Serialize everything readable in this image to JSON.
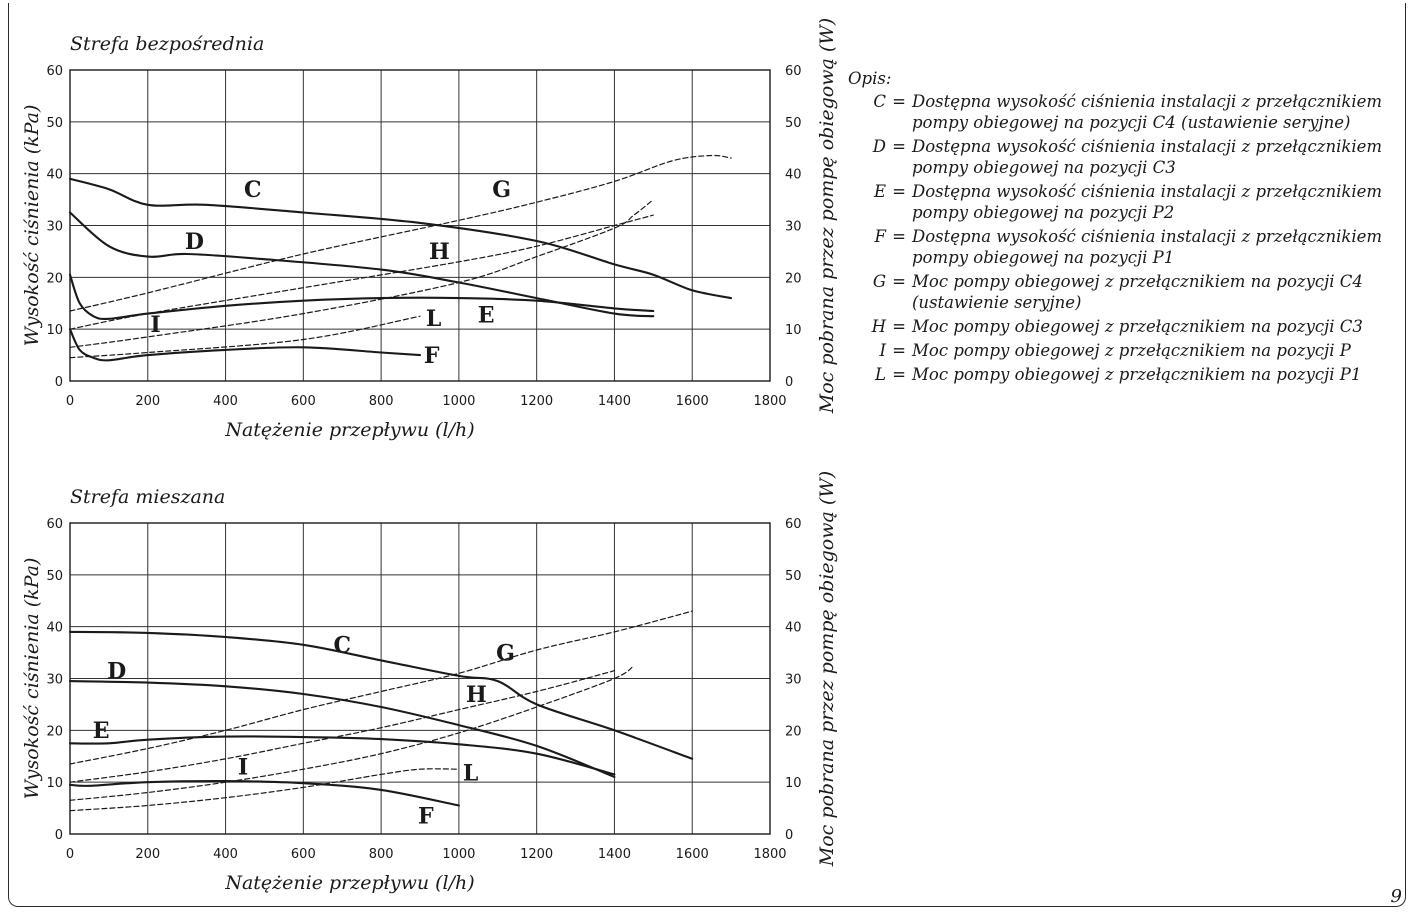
{
  "page_number": "9",
  "legend": {
    "heading": "Opis:",
    "items": [
      {
        "key": "C",
        "text": "Dostępna wysokość ciśnienia instalacji z przełącznikiem pompy obiegowej na pozycji C4 (ustawienie seryjne)"
      },
      {
        "key": "D",
        "text": "Dostępna wysokość ciśnienia instalacji z przełącznikiem pompy obiegowej na pozycji C3"
      },
      {
        "key": "E",
        "text": "Dostępna wysokość ciśnienia instalacji z przełącznikiem pompy obiegowej na pozycji P2"
      },
      {
        "key": "F",
        "text": "Dostępna wysokość ciśnienia instalacji z przełącznikiem pompy obiegowej na pozycji P1"
      },
      {
        "key": "G",
        "text": "Moc pompy obiegowej z przełącznikiem na pozycji C4 (ustawienie seryjne)"
      },
      {
        "key": "H",
        "text": "Moc pompy obiegowej z przełącznikiem na pozycji C3"
      },
      {
        "key": "I",
        "text": "Moc pompy obiegowej z przełącznikiem na pozycji P"
      },
      {
        "key": "L",
        "text": "Moc pompy obiegowej z przełącznikiem na pozycji P1"
      }
    ]
  },
  "chart_data": [
    {
      "type": "line",
      "title": "Strefa bezpośrednia",
      "xlabel": "Natężenie przepływu (l/h)",
      "ylabel": "Wysokość ciśnienia (kPa)",
      "y2label": "Moc pobrana przez pompę obiegową (W)",
      "xlim": [
        0,
        1800
      ],
      "ylim": [
        0,
        60
      ],
      "y2lim": [
        0,
        60
      ],
      "xticks": [
        0,
        200,
        400,
        600,
        800,
        1000,
        1200,
        1400,
        1600,
        1800
      ],
      "yticks": [
        0,
        10,
        20,
        30,
        40,
        50,
        60
      ],
      "grid": true,
      "series": [
        {
          "name": "C",
          "style": "solid",
          "label_at": [
            470,
            35.5
          ],
          "points": [
            [
              0,
              39
            ],
            [
              100,
              37
            ],
            [
              200,
              34
            ],
            [
              350,
              34
            ],
            [
              600,
              32.5
            ],
            [
              900,
              30.5
            ],
            [
              1200,
              27
            ],
            [
              1400,
              22.5
            ],
            [
              1500,
              20.5
            ],
            [
              1600,
              17.5
            ],
            [
              1700,
              16
            ]
          ]
        },
        {
          "name": "D",
          "style": "solid",
          "label_at": [
            320,
            25.5
          ],
          "points": [
            [
              0,
              32.5
            ],
            [
              100,
              26
            ],
            [
              200,
              24
            ],
            [
              300,
              24.5
            ],
            [
              500,
              23.5
            ],
            [
              800,
              21.5
            ],
            [
              1000,
              19
            ],
            [
              1200,
              16
            ],
            [
              1400,
              13
            ],
            [
              1500,
              12.5
            ]
          ]
        },
        {
          "name": "E",
          "style": "solid",
          "label_at": [
            1070,
            11.3
          ],
          "points": [
            [
              0,
              20.5
            ],
            [
              25,
              15
            ],
            [
              60,
              12.5
            ],
            [
              100,
              12
            ],
            [
              200,
              13
            ],
            [
              400,
              14.5
            ],
            [
              600,
              15.5
            ],
            [
              800,
              16
            ],
            [
              1000,
              16
            ],
            [
              1200,
              15.5
            ],
            [
              1400,
              14
            ],
            [
              1500,
              13.5
            ]
          ]
        },
        {
          "name": "F",
          "style": "solid",
          "label_at": [
            930,
            3.5
          ],
          "points": [
            [
              0,
              10
            ],
            [
              25,
              6
            ],
            [
              60,
              4.5
            ],
            [
              100,
              4
            ],
            [
              200,
              5
            ],
            [
              400,
              6
            ],
            [
              600,
              6.5
            ],
            [
              800,
              5.5
            ],
            [
              900,
              5
            ]
          ]
        },
        {
          "name": "G",
          "style": "dashed",
          "label_at": [
            1110,
            35.5
          ],
          "points": [
            [
              0,
              13.5
            ],
            [
              200,
              17
            ],
            [
              600,
              24.5
            ],
            [
              1000,
              31
            ],
            [
              1200,
              34.5
            ],
            [
              1400,
              38.5
            ],
            [
              1550,
              42.5
            ],
            [
              1650,
              43.5
            ],
            [
              1700,
              43
            ]
          ]
        },
        {
          "name": "H",
          "style": "dashed",
          "label_at": [
            950,
            23.5
          ],
          "points": [
            [
              0,
              10
            ],
            [
              200,
              13
            ],
            [
              600,
              18
            ],
            [
              1000,
              23
            ],
            [
              1200,
              26
            ],
            [
              1400,
              30
            ],
            [
              1500,
              32
            ]
          ]
        },
        {
          "name": "I",
          "style": "dashed",
          "label_at": [
            220,
            9.5
          ],
          "points": [
            [
              0,
              6.5
            ],
            [
              200,
              8.5
            ],
            [
              600,
              13
            ],
            [
              1000,
              19
            ],
            [
              1200,
              24
            ],
            [
              1400,
              29.5
            ],
            [
              1450,
              32
            ],
            [
              1500,
              35
            ]
          ]
        },
        {
          "name": "L",
          "style": "dashed",
          "label_at": [
            935,
            10.6
          ],
          "points": [
            [
              0,
              4.5
            ],
            [
              200,
              5.5
            ],
            [
              600,
              8
            ],
            [
              900,
              12.5
            ]
          ]
        }
      ]
    },
    {
      "type": "line",
      "title": "Strefa mieszana",
      "xlabel": "Natężenie przepływu (l/h)",
      "ylabel": "Wysokość ciśnienia (kPa)",
      "y2label": "Moc pobrana przez pompę obiegową (W)",
      "xlim": [
        0,
        1800
      ],
      "ylim": [
        0,
        60
      ],
      "y2lim": [
        0,
        60
      ],
      "xticks": [
        0,
        200,
        400,
        600,
        800,
        1000,
        1200,
        1400,
        1600,
        1800
      ],
      "yticks": [
        0,
        10,
        20,
        30,
        40,
        50,
        60
      ],
      "grid": true,
      "series": [
        {
          "name": "C",
          "style": "solid",
          "label_at": [
            700,
            35
          ],
          "points": [
            [
              0,
              39
            ],
            [
              200,
              38.8
            ],
            [
              400,
              38
            ],
            [
              600,
              36.5
            ],
            [
              800,
              33.5
            ],
            [
              1000,
              30.5
            ],
            [
              1100,
              29.5
            ],
            [
              1200,
              25
            ],
            [
              1400,
              20
            ],
            [
              1600,
              14.5
            ]
          ]
        },
        {
          "name": "D",
          "style": "solid",
          "label_at": [
            120,
            30
          ],
          "points": [
            [
              0,
              29.5
            ],
            [
              200,
              29.2
            ],
            [
              400,
              28.5
            ],
            [
              600,
              27
            ],
            [
              800,
              24.5
            ],
            [
              1000,
              21
            ],
            [
              1200,
              17
            ],
            [
              1400,
              11
            ]
          ]
        },
        {
          "name": "E",
          "style": "solid",
          "label_at": [
            80,
            18.5
          ],
          "points": [
            [
              0,
              17.5
            ],
            [
              100,
              17.5
            ],
            [
              200,
              18.2
            ],
            [
              400,
              18.8
            ],
            [
              600,
              18.7
            ],
            [
              800,
              18.3
            ],
            [
              1000,
              17.3
            ],
            [
              1200,
              15.5
            ],
            [
              1400,
              11.5
            ]
          ]
        },
        {
          "name": "F",
          "style": "solid",
          "label_at": [
            915,
            2
          ],
          "points": [
            [
              0,
              9.5
            ],
            [
              50,
              9.3
            ],
            [
              200,
              10
            ],
            [
              400,
              10.2
            ],
            [
              600,
              9.8
            ],
            [
              800,
              8.5
            ],
            [
              1000,
              5.5
            ]
          ]
        },
        {
          "name": "G",
          "style": "dashed",
          "label_at": [
            1120,
            33.5
          ],
          "points": [
            [
              0,
              13.5
            ],
            [
              200,
              16.5
            ],
            [
              400,
              20
            ],
            [
              600,
              24
            ],
            [
              800,
              27.5
            ],
            [
              1000,
              31
            ],
            [
              1200,
              35.5
            ],
            [
              1400,
              39
            ],
            [
              1600,
              43
            ]
          ]
        },
        {
          "name": "H",
          "style": "dashed",
          "label_at": [
            1045,
            25.5
          ],
          "points": [
            [
              0,
              10
            ],
            [
              200,
              12
            ],
            [
              400,
              14.5
            ],
            [
              600,
              17.5
            ],
            [
              800,
              20.5
            ],
            [
              1000,
              24
            ],
            [
              1200,
              27.5
            ],
            [
              1400,
              31.5
            ]
          ]
        },
        {
          "name": "I",
          "style": "dashed",
          "label_at": [
            445,
            11.5
          ],
          "points": [
            [
              0,
              6.5
            ],
            [
              200,
              8
            ],
            [
              400,
              10
            ],
            [
              600,
              12.5
            ],
            [
              800,
              15.5
            ],
            [
              1000,
              19.5
            ],
            [
              1200,
              24.5
            ],
            [
              1400,
              30
            ],
            [
              1450,
              32.5
            ]
          ]
        },
        {
          "name": "L",
          "style": "dashed",
          "label_at": [
            1030,
            10.3
          ],
          "points": [
            [
              0,
              4.5
            ],
            [
              200,
              5.5
            ],
            [
              400,
              7
            ],
            [
              600,
              9
            ],
            [
              800,
              11.5
            ],
            [
              900,
              12.5
            ],
            [
              1000,
              12.5
            ]
          ]
        }
      ]
    }
  ]
}
